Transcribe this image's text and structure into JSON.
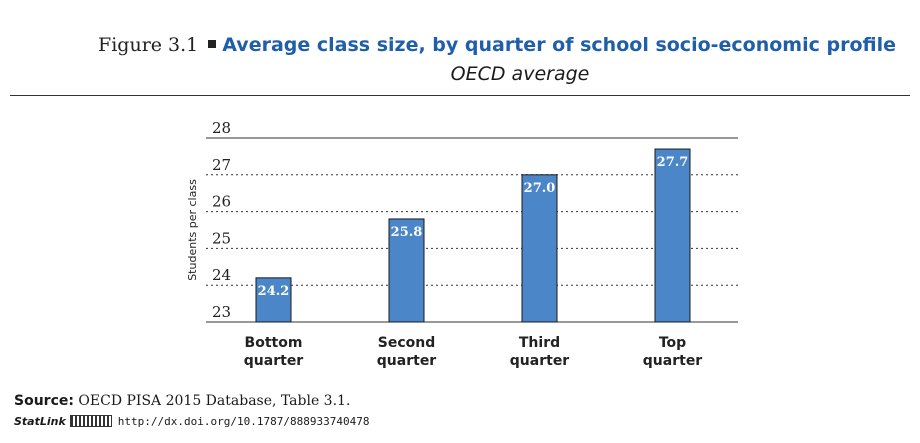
{
  "figure": {
    "label": "Figure 3.1",
    "title": "Average class size, by quarter of school socio-economic profile",
    "subtitle": "OECD average"
  },
  "colors": {
    "bar": "#4a86c8",
    "title": "#1f5ea8",
    "grid": "#333333"
  },
  "chart_data": {
    "type": "bar",
    "title": "Average class size, by quarter of school socio-economic profile",
    "subtitle": "OECD average",
    "xlabel": "",
    "ylabel": "Students per class",
    "ylim": [
      23,
      28
    ],
    "yticks": [
      23,
      24,
      25,
      26,
      27,
      28
    ],
    "grid": "dotted horizontal",
    "categories": [
      [
        "Bottom",
        "quarter"
      ],
      [
        "Second",
        "quarter"
      ],
      [
        "Third",
        "quarter"
      ],
      [
        "Top",
        "quarter"
      ]
    ],
    "values": [
      24.2,
      25.8,
      27.0,
      27.7
    ],
    "value_labels": [
      "24.2",
      "25.8",
      "27.0",
      "27.7"
    ]
  },
  "footer": {
    "source_label": "Source:",
    "source_text": "OECD PISA 2015 Database, Table 3.1.",
    "statlink_label": "StatLink",
    "statlink_url": "http://dx.doi.org/10.1787/888933740478"
  }
}
